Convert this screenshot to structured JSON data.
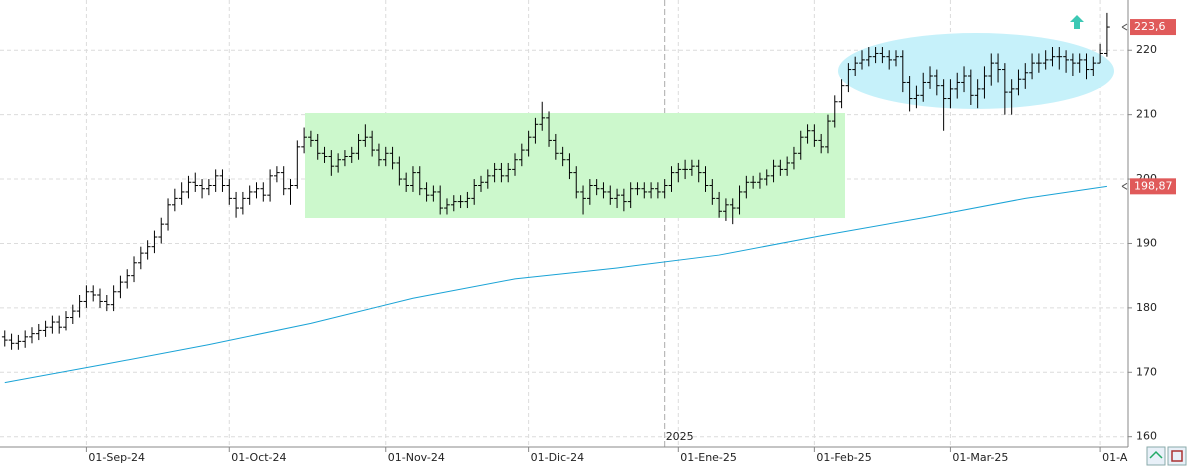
{
  "chart_data": {
    "type": "ohlc",
    "open": [
      175.5,
      175,
      174.5,
      174.8,
      175.5,
      176,
      176.5,
      177,
      177.8,
      177,
      178.5,
      179.5,
      181,
      182.5,
      182,
      181,
      180.5,
      182.5,
      184,
      185,
      187,
      188.5,
      189.5,
      191,
      193,
      196,
      197,
      198,
      199.5,
      199,
      198.5,
      199,
      200.5,
      199,
      197,
      195.5,
      197,
      198,
      198.5,
      197.5,
      200.5,
      201,
      198.5,
      199,
      205,
      206.5,
      206,
      204,
      203.5,
      202,
      203,
      203.5,
      204,
      206,
      206.5,
      204.5,
      203,
      204,
      202.5,
      200,
      199,
      201,
      198.5,
      197.5,
      198,
      195.5,
      196,
      196.5,
      196.5,
      197,
      199,
      199.5,
      200.5,
      201.5,
      200.5,
      201.5,
      203,
      204.5,
      206.5,
      208.5,
      209.5,
      206,
      204,
      203,
      201,
      198,
      197,
      199,
      198.5,
      198,
      197,
      197.5,
      196.5,
      198.5,
      198.5,
      198,
      198.5,
      198,
      199,
      201,
      201.5,
      201.5,
      202,
      201,
      199,
      197,
      195,
      196,
      195.5,
      198,
      199.5,
      199.5,
      200,
      200.5,
      202,
      201.5,
      202.5,
      204,
      206.5,
      207.5,
      206,
      205,
      209,
      212,
      214.5,
      217,
      218,
      218.5,
      219,
      219.5,
      219,
      218.5,
      219,
      215,
      212.5,
      213,
      215,
      216,
      214.5,
      212.5,
      214,
      215,
      216,
      213,
      214,
      216,
      218,
      217,
      213.5,
      214,
      215.5,
      216.5,
      218,
      218,
      218.5,
      219,
      219,
      218.5,
      218,
      218.5,
      217,
      218,
      219.5
    ],
    "high": [
      176.5,
      176,
      175.8,
      176.5,
      177,
      177.5,
      178,
      178.8,
      178.8,
      179.5,
      180.5,
      182,
      183.5,
      183.5,
      183,
      182,
      183.5,
      185,
      186,
      188,
      189.5,
      190.5,
      192,
      194,
      197,
      198.5,
      199.5,
      200.5,
      201,
      200,
      200,
      201.5,
      201.5,
      200,
      198,
      198,
      199,
      199.5,
      199.5,
      201.5,
      202,
      202,
      200,
      206,
      208,
      207.5,
      207,
      205,
      204.5,
      204,
      204.5,
      205,
      207,
      208.5,
      207.5,
      205.5,
      205,
      205,
      203.5,
      201,
      202,
      202,
      199.5,
      199,
      199,
      197,
      197.5,
      197.5,
      198,
      200,
      200.5,
      201.5,
      202.5,
      202.5,
      202.5,
      204,
      205.5,
      207.5,
      209.5,
      212,
      210.5,
      207,
      205,
      204,
      202,
      199,
      200,
      200,
      199.5,
      199,
      198.5,
      198.5,
      199.5,
      199.5,
      199.5,
      199.5,
      199.5,
      200,
      202,
      202.5,
      203,
      203,
      203,
      202,
      200,
      198,
      197,
      197,
      199,
      200.5,
      200.5,
      201,
      201.5,
      203,
      203,
      203.5,
      205,
      207.5,
      208.5,
      208.5,
      207,
      210,
      213,
      215.5,
      218,
      219,
      220,
      220.5,
      220.5,
      220.5,
      220,
      220,
      220,
      216,
      214.5,
      216.5,
      217.5,
      217,
      215.5,
      215.5,
      216.5,
      217.5,
      217,
      215.5,
      217.5,
      219.5,
      219.5,
      218,
      215.5,
      217,
      218,
      219.5,
      219.5,
      220,
      220.5,
      220.5,
      220,
      219.5,
      219.5,
      219.5,
      219,
      221,
      225.8
    ],
    "low": [
      174,
      173.5,
      173.5,
      173.8,
      174.5,
      175,
      175.5,
      176,
      176,
      176.5,
      177.5,
      178.5,
      180,
      181,
      180,
      179.5,
      179.5,
      181.5,
      183,
      184,
      186,
      187.5,
      188.5,
      190,
      192,
      195,
      196,
      197,
      198,
      197,
      197.5,
      198,
      198,
      196,
      194,
      194.5,
      196,
      197,
      196.5,
      196.5,
      199.5,
      197.5,
      196,
      198.5,
      204,
      205,
      203,
      202.5,
      200.5,
      201,
      202,
      202.5,
      203,
      205,
      203.5,
      202,
      202,
      201.5,
      199,
      198,
      198,
      197.5,
      196.5,
      196.5,
      194.5,
      194.5,
      195,
      195.5,
      195.5,
      196,
      198,
      198.5,
      199.5,
      199.5,
      199.5,
      200.5,
      202,
      203.5,
      205.5,
      207.5,
      205,
      203,
      202,
      200,
      197,
      194.5,
      196,
      197.5,
      197,
      196,
      195.5,
      195,
      195.5,
      197.5,
      197,
      197,
      197,
      197,
      198,
      199.5,
      200,
      200.5,
      199.5,
      198,
      196,
      194,
      193.5,
      193,
      194.5,
      197,
      198.5,
      198.5,
      199,
      199.5,
      200.5,
      200.5,
      201.5,
      203,
      205.5,
      205,
      204,
      204,
      208,
      211,
      213.5,
      216,
      217,
      217.5,
      218,
      218,
      217,
      217.5,
      213.5,
      210.5,
      211,
      212,
      214,
      213,
      207.5,
      211,
      212.5,
      213.5,
      211.5,
      211,
      212.5,
      214.5,
      215,
      210,
      210,
      213,
      214,
      215.5,
      216.5,
      217,
      217.5,
      217,
      216.5,
      216,
      216.5,
      215.5,
      216,
      218,
      219
    ],
    "close": [
      175,
      174.5,
      174.8,
      175.5,
      176,
      176.5,
      177,
      177.8,
      177,
      178.5,
      179.5,
      181,
      182.5,
      182,
      181,
      180.5,
      182.5,
      184,
      185,
      187,
      188.5,
      189.5,
      191,
      193,
      196,
      197,
      198,
      199.5,
      199,
      198.5,
      199,
      200.5,
      199,
      197,
      195.5,
      197,
      198,
      198.5,
      197.5,
      200.5,
      201,
      198.5,
      199,
      205,
      206.5,
      206,
      204,
      203.5,
      202,
      203,
      203.5,
      204,
      206,
      206.5,
      204.5,
      203,
      204,
      202.5,
      200,
      199,
      201,
      198.5,
      197.5,
      198,
      195.5,
      196,
      196.5,
      196.5,
      197,
      199,
      199.5,
      200.5,
      201.5,
      200.5,
      201.5,
      203,
      204.5,
      206.5,
      208.5,
      209.5,
      206,
      204,
      203,
      201,
      198,
      197,
      199,
      198.5,
      198,
      197,
      197.5,
      196.5,
      198.5,
      198.5,
      198,
      198.5,
      198,
      199,
      201,
      201.5,
      201.5,
      202,
      201,
      199,
      197,
      195,
      196,
      195.5,
      198,
      199.5,
      199.5,
      200,
      200.5,
      202,
      201.5,
      202.5,
      204,
      206.5,
      207.5,
      206,
      205,
      209,
      212,
      214.5,
      217,
      218,
      218.5,
      219,
      219.5,
      219,
      218.5,
      219,
      215,
      212.5,
      213,
      215,
      216,
      214.5,
      212.5,
      214,
      215,
      216,
      213,
      214,
      216,
      218,
      217,
      213.5,
      214,
      215.5,
      216.5,
      218,
      218,
      218.5,
      219,
      219,
      218.5,
      218,
      218.5,
      217,
      218,
      219.5,
      223.6
    ],
    "color": "#000000",
    "series": [
      {
        "color": "#1aa3d6",
        "x": [
          0,
          15,
          30,
          45,
          60,
          75,
          90,
          105,
          120,
          135,
          150,
          162
        ],
        "values": [
          168.4,
          171.3,
          174.3,
          177.6,
          181.5,
          184.5,
          186.2,
          188.2,
          191.2,
          194,
          197,
          198.87
        ]
      }
    ],
    "xlim": [
      -0.7,
      165.1
    ],
    "xticks": [
      {
        "value": 12,
        "label": "01-Sep-24"
      },
      {
        "value": 33,
        "label": "01-Oct-24"
      },
      {
        "value": 56,
        "label": "01-Nov-24"
      },
      {
        "value": 77,
        "label": "01-Dic-24"
      },
      {
        "value": 99,
        "label": "01-Ene-25"
      },
      {
        "value": 119,
        "label": "01-Feb-25"
      },
      {
        "value": 139,
        "label": "01-Mar-25"
      },
      {
        "value": 161,
        "label": "01-A"
      }
    ],
    "year_marker": {
      "value": 97,
      "label": "2025"
    },
    "ylim": [
      158.4,
      227.8
    ],
    "yticks": [
      160,
      170,
      180,
      190,
      200,
      210,
      220
    ],
    "price_labels": [
      {
        "value": 223.6,
        "label": "223,6",
        "color": "#e05a5a"
      },
      {
        "value": 198.87,
        "label": "198,87",
        "color": "#e05a5a"
      }
    ],
    "grid": true
  }
}
